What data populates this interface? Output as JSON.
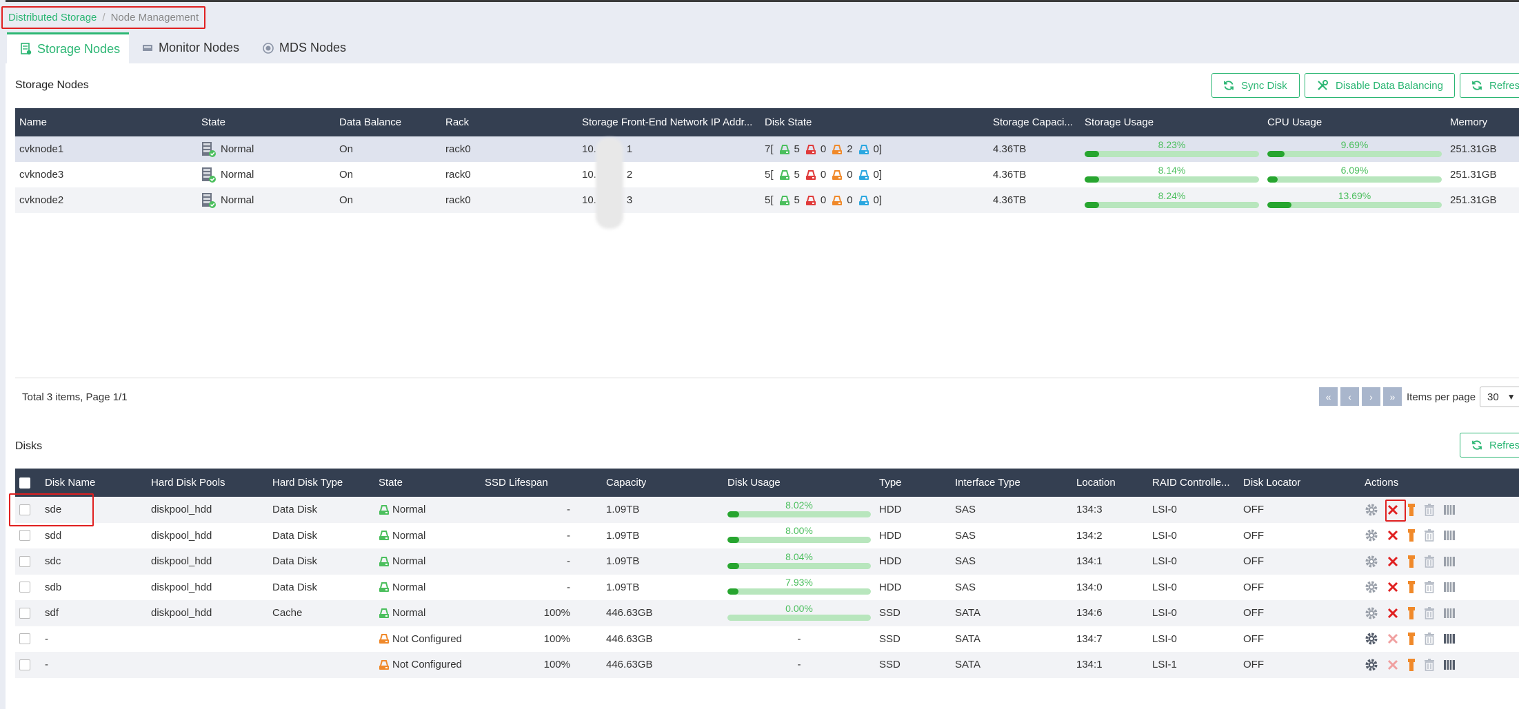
{
  "breadcrumb": {
    "root": "Distributed Storage",
    "separator": "/",
    "current": "Node Management"
  },
  "tabs": [
    {
      "label": "Storage Nodes",
      "active": true,
      "icon": "storage-node-icon"
    },
    {
      "label": "Monitor Nodes",
      "active": false,
      "icon": "monitor-icon"
    },
    {
      "label": "MDS Nodes",
      "active": false,
      "icon": "mds-icon"
    }
  ],
  "storage": {
    "title": "Storage Nodes",
    "buttons": {
      "sync": "Sync Disk",
      "disable": "Disable Data Balancing",
      "refresh": "Refres"
    },
    "columns": [
      "Name",
      "State",
      "Data Balance",
      "Rack",
      "Storage Front-End Network IP Addr...",
      "Disk State",
      "Storage Capaci...",
      "Storage Usage",
      "CPU Usage",
      "Memory"
    ],
    "rows": [
      {
        "name": "cvknode1",
        "state": "Normal",
        "balance": "On",
        "rack": "rack0",
        "ip_start": "10.",
        "ip_end": "1",
        "disk_total": "7",
        "d_green": "5",
        "d_red": "0",
        "d_orange": "2",
        "d_blue": "0",
        "capacity": "4.36TB",
        "storage_usage": "8.23%",
        "storage_val": 8.23,
        "cpu_usage": "9.69%",
        "cpu_val": 9.69,
        "memory": "251.31GB"
      },
      {
        "name": "cvknode3",
        "state": "Normal",
        "balance": "On",
        "rack": "rack0",
        "ip_start": "10.",
        "ip_end": "2",
        "disk_total": "5",
        "d_green": "5",
        "d_red": "0",
        "d_orange": "0",
        "d_blue": "0",
        "capacity": "4.36TB",
        "storage_usage": "8.14%",
        "storage_val": 8.14,
        "cpu_usage": "6.09%",
        "cpu_val": 6.09,
        "memory": "251.31GB"
      },
      {
        "name": "cvknode2",
        "state": "Normal",
        "balance": "On",
        "rack": "rack0",
        "ip_start": "10.",
        "ip_end": "3",
        "disk_total": "5",
        "d_green": "5",
        "d_red": "0",
        "d_orange": "0",
        "d_blue": "0",
        "capacity": "4.36TB",
        "storage_usage": "8.24%",
        "storage_val": 8.24,
        "cpu_usage": "13.69%",
        "cpu_val": 13.69,
        "memory": "251.31GB"
      }
    ],
    "pager": {
      "summary": "Total 3 items, Page 1/1",
      "items_per_page_label": "Items per page",
      "items_per_page": "30"
    }
  },
  "disks": {
    "title": "Disks",
    "refresh": "Refres",
    "columns": [
      "Disk Name",
      "Hard Disk Pools",
      "Hard Disk Type",
      "State",
      "SSD Lifespan",
      "Capacity",
      "Disk Usage",
      "Type",
      "Interface Type",
      "Location",
      "RAID Controlle...",
      "Disk Locator",
      "Actions"
    ],
    "rows": [
      {
        "name": "sde",
        "pool": "diskpool_hdd",
        "dtype": "Data Disk",
        "state": "Normal",
        "state_color": "#4bbf5d",
        "lifespan": "-",
        "capacity": "1.09TB",
        "usage": "8.02%",
        "usage_val": 8.02,
        "type": "HDD",
        "iface": "SAS",
        "location": "134:3",
        "raid": "LSI-0",
        "locator": "OFF"
      },
      {
        "name": "sdd",
        "pool": "diskpool_hdd",
        "dtype": "Data Disk",
        "state": "Normal",
        "state_color": "#4bbf5d",
        "lifespan": "-",
        "capacity": "1.09TB",
        "usage": "8.00%",
        "usage_val": 8.0,
        "type": "HDD",
        "iface": "SAS",
        "location": "134:2",
        "raid": "LSI-0",
        "locator": "OFF"
      },
      {
        "name": "sdc",
        "pool": "diskpool_hdd",
        "dtype": "Data Disk",
        "state": "Normal",
        "state_color": "#4bbf5d",
        "lifespan": "-",
        "capacity": "1.09TB",
        "usage": "8.04%",
        "usage_val": 8.04,
        "type": "HDD",
        "iface": "SAS",
        "location": "134:1",
        "raid": "LSI-0",
        "locator": "OFF"
      },
      {
        "name": "sdb",
        "pool": "diskpool_hdd",
        "dtype": "Data Disk",
        "state": "Normal",
        "state_color": "#4bbf5d",
        "lifespan": "-",
        "capacity": "1.09TB",
        "usage": "7.93%",
        "usage_val": 7.93,
        "type": "HDD",
        "iface": "SAS",
        "location": "134:0",
        "raid": "LSI-0",
        "locator": "OFF"
      },
      {
        "name": "sdf",
        "pool": "diskpool_hdd",
        "dtype": "Cache",
        "state": "Normal",
        "state_color": "#4bbf5d",
        "lifespan": "100%",
        "capacity": "446.63GB",
        "usage": "0.00%",
        "usage_val": 0,
        "type": "SSD",
        "iface": "SATA",
        "location": "134:6",
        "raid": "LSI-0",
        "locator": "OFF"
      },
      {
        "name": "-",
        "pool": "",
        "dtype": "",
        "state": "Not Configured",
        "state_color": "#f0892a",
        "lifespan": "100%",
        "capacity": "446.63GB",
        "usage": "-",
        "usage_val": null,
        "type": "SSD",
        "iface": "SATA",
        "location": "134:7",
        "raid": "LSI-0",
        "locator": "OFF"
      },
      {
        "name": "-",
        "pool": "",
        "dtype": "",
        "state": "Not Configured",
        "state_color": "#f0892a",
        "lifespan": "100%",
        "capacity": "446.63GB",
        "usage": "-",
        "usage_val": null,
        "type": "SSD",
        "iface": "SATA",
        "location": "134:1",
        "raid": "LSI-1",
        "locator": "OFF"
      }
    ]
  },
  "colors": {
    "accent": "#2bb673",
    "header_bg": "#343f51",
    "danger": "#e02020",
    "warning": "#f0892a",
    "info": "#2aa7e0",
    "bar_fill": "#27a52f",
    "bar_track": "#b8e6bd"
  }
}
